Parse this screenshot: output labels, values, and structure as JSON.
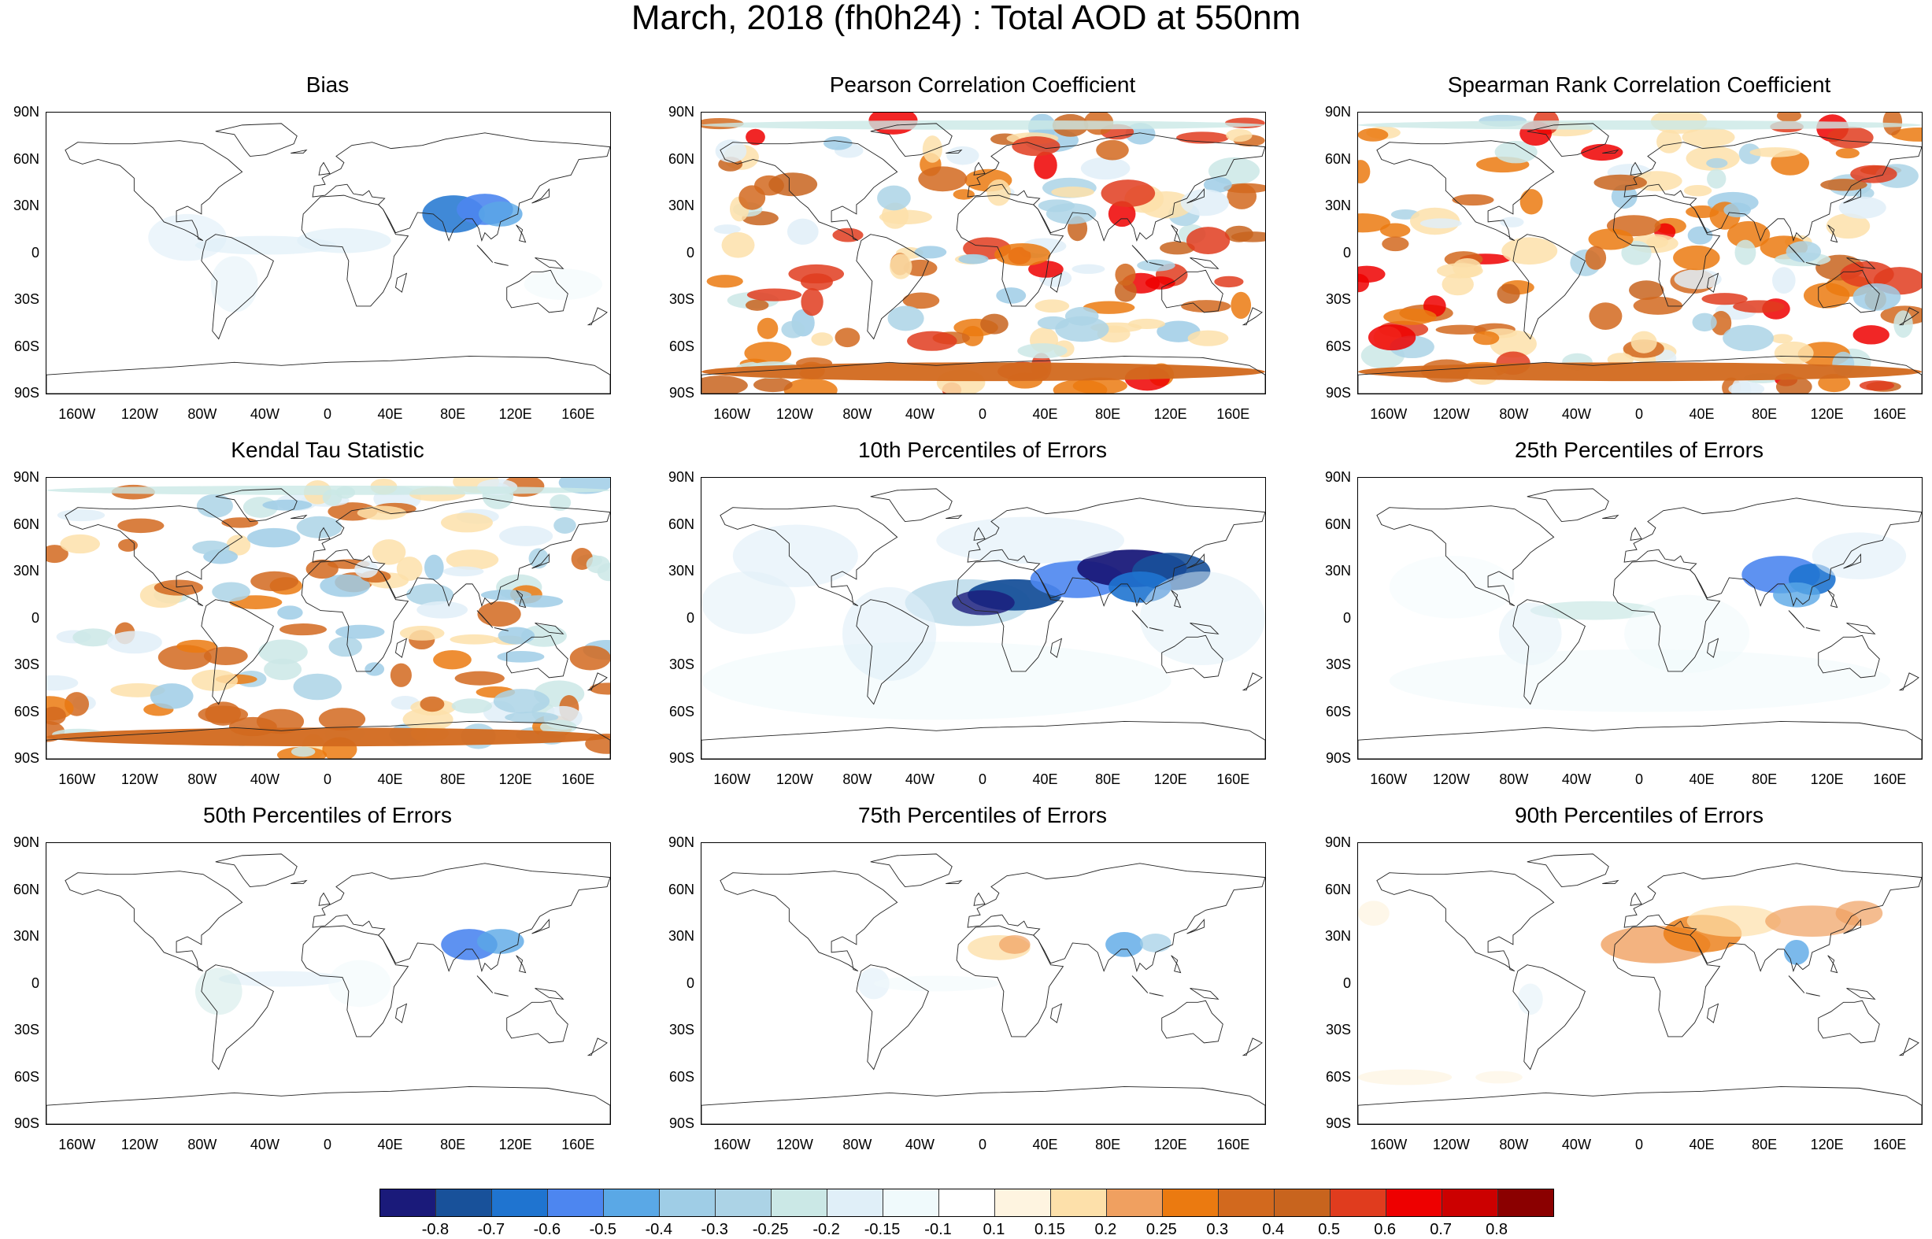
{
  "title": "March, 2018 (fh0h24) : Total AOD at 550nm",
  "lat_labels": [
    "90N",
    "60N",
    "30N",
    "0",
    "30S",
    "60S",
    "90S"
  ],
  "lon_labels": [
    "160W",
    "120W",
    "80W",
    "40W",
    "0",
    "40E",
    "80E",
    "120E",
    "160E"
  ],
  "colorbar": {
    "levels": [
      "-0.8",
      "-0.7",
      "-0.6",
      "-0.5",
      "-0.4",
      "-0.3",
      "-0.25",
      "-0.2",
      "-0.15",
      "-0.1",
      "0.1",
      "0.15",
      "0.2",
      "0.25",
      "0.3",
      "0.4",
      "0.5",
      "0.6",
      "0.7",
      "0.8"
    ],
    "colors": [
      "#1a1a7a",
      "#18519a",
      "#1f74d0",
      "#4d86f0",
      "#5aa8e6",
      "#9fcde6",
      "#acd3e6",
      "#cbe8e6",
      "#e0eff8",
      "#f0fafc",
      "#ffffff",
      "#fef4e0",
      "#fde0aa",
      "#f0a060",
      "#eb7a10",
      "#d2691e",
      "#c8641e",
      "#e03c1e",
      "#ee0000",
      "#cc0000",
      "#8b0000"
    ]
  },
  "chart_data": [
    {
      "type": "heatmap",
      "title": "Bias",
      "pattern": "weak negative (light blue) over tropical Atlantic/Africa; strongest negative (blue) over South and East Asia",
      "ylim": [
        -90,
        90
      ],
      "xlim": [
        -180,
        180
      ]
    },
    {
      "type": "heatmap",
      "title": "Pearson Correlation Coefficient",
      "pattern": "widespread positive correlation (orange/red) over continents and oceans, patches of weak negative (light blue)",
      "ylim": [
        -90,
        90
      ],
      "xlim": [
        -180,
        180
      ]
    },
    {
      "type": "heatmap",
      "title": "Spearman Rank Correlation Coefficient",
      "pattern": "widespread positive correlation (orange/red), similar to Pearson",
      "ylim": [
        -90,
        90
      ],
      "xlim": [
        -180,
        180
      ]
    },
    {
      "type": "heatmap",
      "title": "Kendal Tau Statistic",
      "pattern": "moderate positive (orange) patches, weaker than Pearson/Spearman",
      "ylim": [
        -90,
        90
      ],
      "xlim": [
        -180,
        180
      ]
    },
    {
      "type": "heatmap",
      "title": "10th Percentiles of Errors",
      "pattern": "strong negative (dark blue) over North Africa and South/East Asia, light blue elsewhere",
      "ylim": [
        -90,
        90
      ],
      "xlim": [
        -180,
        180
      ]
    },
    {
      "type": "heatmap",
      "title": "25th Percentiles of Errors",
      "pattern": "negative (blue) over South/East Asia, light blue over tropics",
      "ylim": [
        -90,
        90
      ],
      "xlim": [
        -180,
        180
      ]
    },
    {
      "type": "heatmap",
      "title": "50th Percentiles of Errors",
      "pattern": "negative (blue) over South/East Asia, mostly near zero elsewhere",
      "ylim": [
        -90,
        90
      ],
      "xlim": [
        -180,
        180
      ]
    },
    {
      "type": "heatmap",
      "title": "75th Percentiles of Errors",
      "pattern": "weak positive (orange) over Sahara, weak negative over South Asia",
      "ylim": [
        -90,
        90
      ],
      "xlim": [
        -180,
        180
      ]
    },
    {
      "type": "heatmap",
      "title": "90th Percentiles of Errors",
      "pattern": "positive (orange) over North Africa, Middle East and Central/East Asia",
      "ylim": [
        -90,
        90
      ],
      "xlim": [
        -180,
        180
      ]
    }
  ]
}
